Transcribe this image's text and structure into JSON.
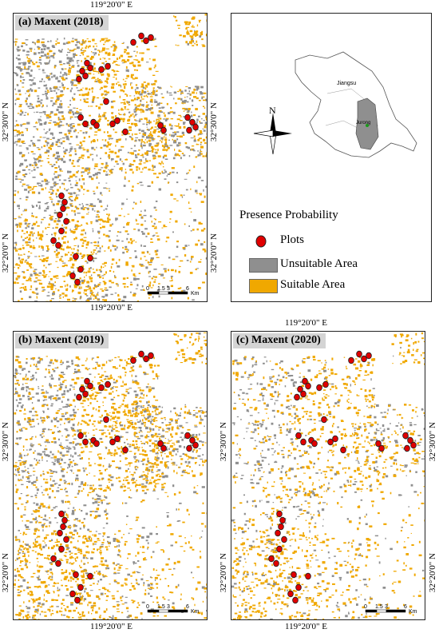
{
  "colors": {
    "suitable": "#f0a800",
    "unsuitable": "#8f8f8f",
    "plot": "#e00000",
    "frame": "#222222"
  },
  "coordinates": {
    "top_a": "119°20'0\" E",
    "bottom_a": "119°20'0\" E",
    "left_a": "32°30'0\" N",
    "left_a2": "32°20'0\" N",
    "right_a": "32°30'0\" N",
    "right_a2": "32°20'0\" N",
    "top_c": "119°20'0\" E",
    "bottom_bc": "119°20'0\" E",
    "left_b": "32°30'0\" N",
    "left_b2": "32°20'0\" N",
    "left_c": "32°30'0\" N",
    "left_c2": "32°20'0\" N",
    "right_c": "32°30'0\" N",
    "right_c2": "32°20'0\" N"
  },
  "panels": [
    {
      "id": "a",
      "title": "(a)  Maxent (2018)"
    },
    {
      "id": "b",
      "title": "(b)  Maxent (2019)"
    },
    {
      "id": "c",
      "title": "(c)  Maxent (2020)"
    }
  ],
  "scalebar": {
    "ticks": [
      "0",
      "1.5",
      "3",
      "6"
    ],
    "unit": "Km"
  },
  "inset": {
    "north": "N",
    "province_label": "Jiangsu",
    "county_label": "Jurong"
  },
  "legend": {
    "title": "Presence Probability",
    "items": [
      {
        "label": "Plots",
        "icon": "red-dot-icon"
      },
      {
        "label": "Unsuitable Area",
        "icon": "grey-swatch"
      },
      {
        "label": "Suitable Area",
        "icon": "orange-swatch"
      }
    ]
  }
}
